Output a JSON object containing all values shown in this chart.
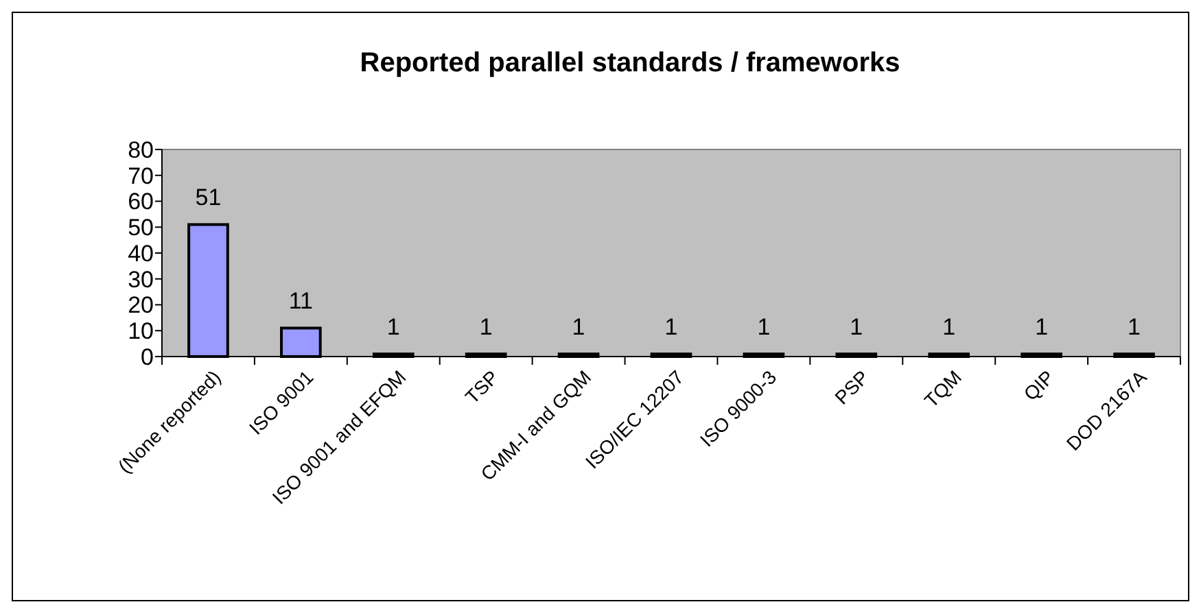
{
  "chart_data": {
    "type": "bar",
    "title": "Reported parallel standards / frameworks",
    "categories": [
      "(None reported)",
      "ISO 9001",
      "ISO 9001 and EFQM",
      "TSP",
      "CMM-I and GQM",
      "ISO/IEC 12207",
      "ISO 9000-3",
      "PSP",
      "TQM",
      "QIP",
      "DOD 2167A"
    ],
    "values": [
      51,
      11,
      1,
      1,
      1,
      1,
      1,
      1,
      1,
      1,
      1
    ],
    "color": "#9999ff",
    "ylim": [
      0,
      80
    ],
    "yticks": [
      0,
      10,
      20,
      30,
      40,
      50,
      60,
      70,
      80
    ],
    "data_labels": true,
    "grid": false
  }
}
